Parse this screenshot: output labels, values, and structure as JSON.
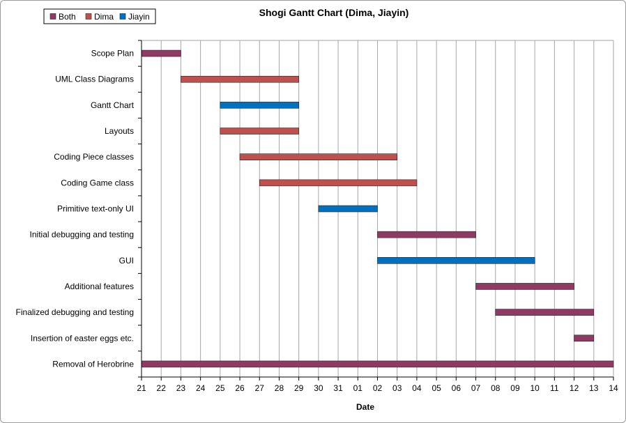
{
  "chart_data": {
    "type": "gantt",
    "title": "Shogi Gantt Chart (Dima, Jiayin)",
    "xlabel": "Date",
    "x_ticks": [
      "21",
      "22",
      "23",
      "24",
      "25",
      "26",
      "27",
      "28",
      "29",
      "30",
      "31",
      "01",
      "02",
      "03",
      "04",
      "05",
      "06",
      "07",
      "08",
      "09",
      "10",
      "11",
      "12",
      "13",
      "14"
    ],
    "legend": {
      "placement": "top-left",
      "entries": [
        {
          "name": "Both",
          "color": "#8e3a62"
        },
        {
          "name": "Dima",
          "color": "#c0504d"
        },
        {
          "name": "Jiayin",
          "color": "#0070c0"
        }
      ]
    },
    "grid": "vertical",
    "tasks": [
      {
        "name": "Scope Plan",
        "start": "21",
        "end": "23",
        "owner": "Both"
      },
      {
        "name": "UML Class Diagrams",
        "start": "23",
        "end": "29",
        "owner": "Dima"
      },
      {
        "name": "Gantt Chart",
        "start": "25",
        "end": "29",
        "owner": "Jiayin"
      },
      {
        "name": "Layouts",
        "start": "25",
        "end": "29",
        "owner": "Dima"
      },
      {
        "name": "Coding Piece classes",
        "start": "26",
        "end": "03",
        "owner": "Dima"
      },
      {
        "name": "Coding Game class",
        "start": "27",
        "end": "04",
        "owner": "Dima"
      },
      {
        "name": "Primitive text-only UI",
        "start": "30",
        "end": "02",
        "owner": "Jiayin"
      },
      {
        "name": "Initial debugging and testing",
        "start": "02",
        "end": "07",
        "owner": "Both"
      },
      {
        "name": "GUI",
        "start": "02",
        "end": "10",
        "owner": "Jiayin"
      },
      {
        "name": "Additional features",
        "start": "07",
        "end": "12",
        "owner": "Both"
      },
      {
        "name": "Finalized debugging and testing",
        "start": "08",
        "end": "13",
        "owner": "Both"
      },
      {
        "name": "Insertion of easter eggs etc.",
        "start": "12",
        "end": "13",
        "owner": "Both"
      },
      {
        "name": "Removal of Herobrine",
        "start": "21",
        "end": "14",
        "owner": "Both"
      }
    ]
  }
}
